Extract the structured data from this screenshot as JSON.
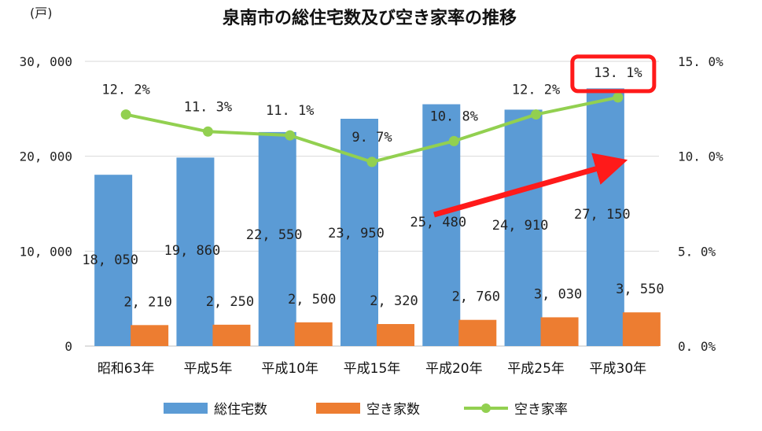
{
  "chart_data": {
    "type": "bar",
    "title": "泉南市の総住宅数及び空き家率の推移",
    "y_unit_label": "(戸)",
    "categories": [
      "昭和63年",
      "平成5年",
      "平成10年",
      "平成15年",
      "平成20年",
      "平成25年",
      "平成30年"
    ],
    "series": [
      {
        "name": "総住宅数",
        "kind": "bar",
        "axis": "left",
        "color": "#5B9BD5",
        "values": [
          18050,
          19860,
          22550,
          23950,
          25480,
          24910,
          27150
        ],
        "labels": [
          "18, 050",
          "19, 860",
          "22, 550",
          "23, 950",
          "25, 480",
          "24, 910",
          "27, 150"
        ]
      },
      {
        "name": "空き家数",
        "kind": "bar",
        "axis": "left",
        "color": "#ED7D31",
        "values": [
          2210,
          2250,
          2500,
          2320,
          2760,
          3030,
          3550
        ],
        "labels": [
          "2, 210",
          "2, 250",
          "2, 500",
          "2, 320",
          "2, 760",
          "3, 030",
          "3, 550"
        ]
      },
      {
        "name": "空き家率",
        "kind": "line",
        "axis": "right",
        "color": "#92D050",
        "values": [
          12.2,
          11.3,
          11.1,
          9.7,
          10.8,
          12.2,
          13.1
        ],
        "labels": [
          "12. 2%",
          "11. 3%",
          "11. 1%",
          "9. 7%",
          "10. 8%",
          "12. 2%",
          "13. 1%"
        ]
      }
    ],
    "y_left": {
      "range": [
        0,
        30000
      ],
      "ticks": [
        0,
        10000,
        20000,
        30000
      ],
      "tick_labels": [
        "0",
        "10, 000",
        "20, 000",
        "30, 000"
      ]
    },
    "y_right": {
      "range": [
        0,
        15
      ],
      "ticks": [
        0,
        5,
        10,
        15
      ],
      "tick_labels": [
        "0. 0%",
        "5. 0%",
        "10. 0%",
        "15. 0%"
      ]
    },
    "grid": true,
    "legend_position": "bottom",
    "annotations": [
      {
        "type": "highlight-box",
        "target": "13. 1%",
        "color": "#FF0000"
      },
      {
        "type": "arrow",
        "color": "#FF0000",
        "description": "upward trend arrow"
      }
    ]
  }
}
